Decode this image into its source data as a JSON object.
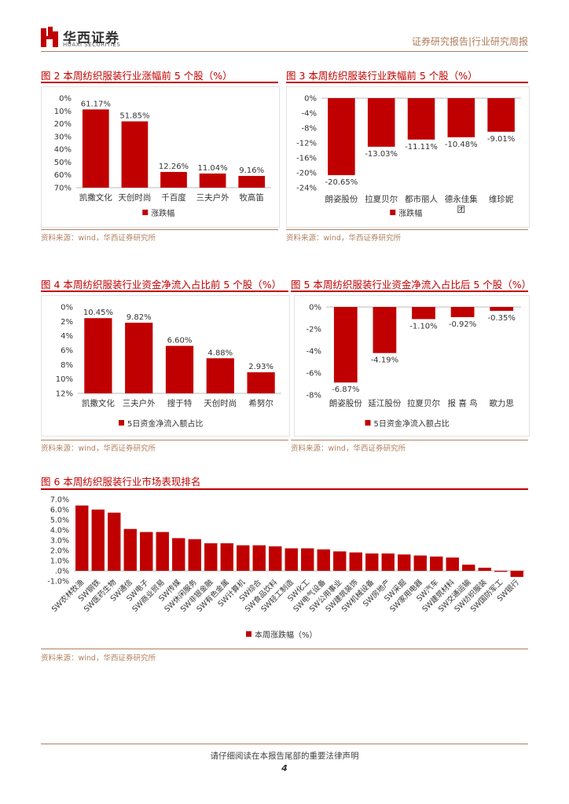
{
  "header": {
    "logo_cn": "华西证券",
    "logo_en": "HUAXI SECURITIES",
    "right": "证券研究报告|行业研究周报"
  },
  "source_text": "资料来源：wind，华西证券研究所",
  "footer": {
    "notice": "请仔细阅读在本报告尾部的重要法律声明",
    "page": "4"
  },
  "colors": {
    "bar": "#c00000",
    "accent": "#b07d5a"
  },
  "figures": {
    "fig2": {
      "title": "图 2 本周纺织服装行业涨幅前 5 个股（%）"
    },
    "fig3": {
      "title": "图 3 本周纺织服装行业跌幅前 5 个股（%）"
    },
    "fig4": {
      "title": "图 4 本周纺织服装行业资金净流入占比前 5 个股（%）"
    },
    "fig5": {
      "title": "图 5 本周纺织服装行业资金净流入占比后 5 个股（%）"
    },
    "fig6": {
      "title": "图 6 本周纺织服装行业市场表现排名"
    }
  },
  "chart_data": [
    {
      "id": "fig2",
      "type": "bar",
      "categories": [
        "凯撒文化",
        "天创时尚",
        "千百度",
        "三夫户外",
        "牧高笛"
      ],
      "values": [
        61.17,
        51.85,
        12.26,
        11.04,
        9.16
      ],
      "labels": [
        "61.17%",
        "51.85%",
        "12.26%",
        "11.04%",
        "9.16%"
      ],
      "yticks": [
        "0%",
        "10%",
        "20%",
        "30%",
        "40%",
        "50%",
        "60%",
        "70%"
      ],
      "ylim": [
        0,
        70
      ],
      "step": 10,
      "legend": "涨跌幅",
      "legend_position": "bottom"
    },
    {
      "id": "fig3",
      "type": "bar",
      "categories": [
        "朗姿股份",
        "拉夏贝尔",
        "都市丽人",
        "德永佳集团",
        "维珍妮"
      ],
      "values": [
        -20.65,
        -13.03,
        -11.11,
        -10.48,
        -9.01
      ],
      "labels": [
        "-20.65%",
        "-13.03%",
        "-11.11%",
        "-10.48%",
        "-9.01%"
      ],
      "yticks": [
        "0%",
        "-4%",
        "-8%",
        "-12%",
        "-16%",
        "-20%",
        "-24%"
      ],
      "ylim": [
        -24,
        0
      ],
      "step": 4,
      "legend": "涨跌幅",
      "legend_position": "bottom"
    },
    {
      "id": "fig4",
      "type": "bar",
      "categories": [
        "凯撒文化",
        "三夫户外",
        "搜于特",
        "天创时尚",
        "希努尔"
      ],
      "values": [
        10.45,
        9.82,
        6.6,
        4.88,
        2.93
      ],
      "labels": [
        "10.45%",
        "9.82%",
        "6.60%",
        "4.88%",
        "2.93%"
      ],
      "yticks": [
        "0%",
        "2%",
        "4%",
        "6%",
        "8%",
        "10%",
        "12%"
      ],
      "ylim": [
        0,
        12
      ],
      "step": 2,
      "legend": "5日资金净流入额占比",
      "legend_position": "bottom"
    },
    {
      "id": "fig5",
      "type": "bar",
      "categories": [
        "朗姿股份",
        "延江股份",
        "拉夏贝尔",
        "报 喜 鸟",
        "歌力思"
      ],
      "values": [
        -6.87,
        -4.19,
        -1.1,
        -0.92,
        -0.35
      ],
      "labels": [
        "-6.87%",
        "-4.19%",
        "-1.10%",
        "-0.92%",
        "-0.35%"
      ],
      "yticks": [
        "0%",
        "-2%",
        "-4%",
        "-6%",
        "-8%"
      ],
      "ylim": [
        -8,
        0
      ],
      "step": 2,
      "legend": "5日资金净流入额占比",
      "legend_position": "bottom"
    },
    {
      "id": "fig6",
      "type": "bar",
      "categories": [
        "SW农林牧渔",
        "SW钢铁",
        "SW医药生物",
        "SW通信",
        "SW电子",
        "SW商业贸易",
        "SW传媒",
        "SW休闲服务",
        "SW非银金融",
        "SW有色金属",
        "SW计算机",
        "SW综合",
        "SW食品饮料",
        "SW轻工制造",
        "SW化工",
        "SW电气设备",
        "SW公用事业",
        "SW建筑装饰",
        "SW机械设备",
        "SW房地产",
        "SW采掘",
        "SW家用电器",
        "SW汽车",
        "SW建筑材料",
        "SW交通运输",
        "SW纺织服装",
        "SW国防军工",
        "SW银行"
      ],
      "values": [
        6.4,
        6.0,
        5.7,
        4.1,
        3.8,
        3.8,
        3.2,
        3.1,
        2.7,
        2.7,
        2.5,
        2.5,
        2.4,
        2.2,
        2.2,
        2.1,
        1.9,
        1.8,
        1.7,
        1.7,
        1.6,
        1.5,
        1.4,
        1.3,
        0.6,
        0.3,
        -0.1,
        -0.6
      ],
      "yticks": [
        "7.0%",
        "6.0%",
        "5.0%",
        "4.0%",
        "3.0%",
        "2.0%",
        "1.0%",
        ".0%",
        "-1.0%"
      ],
      "ylim": [
        -1,
        7
      ],
      "step": 1,
      "legend": "本周涨跌幅（%）",
      "legend_position": "bottom"
    }
  ]
}
